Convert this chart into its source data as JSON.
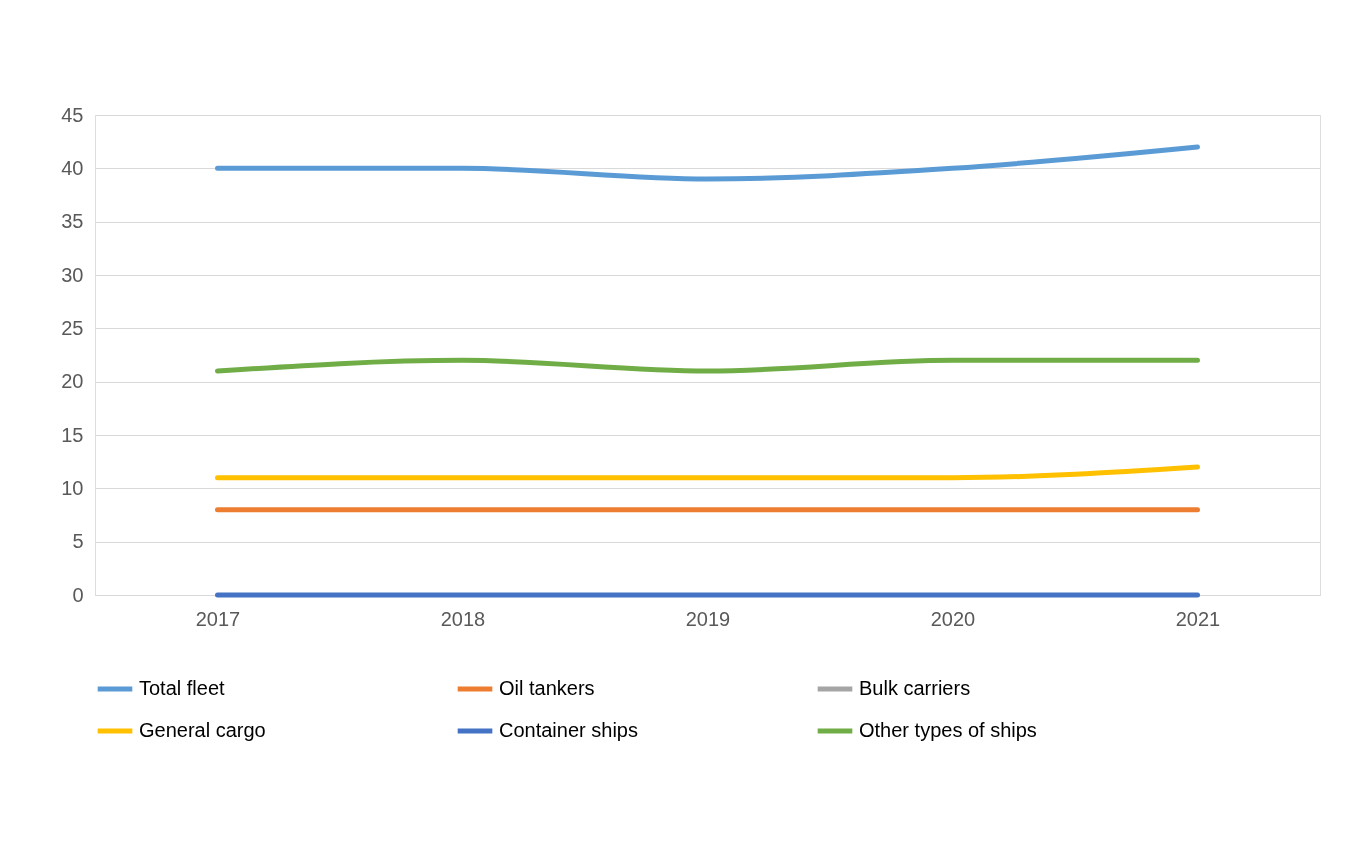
{
  "chart_data": {
    "type": "line",
    "categories": [
      "2017",
      "2018",
      "2019",
      "2020",
      "2021"
    ],
    "series": [
      {
        "name": "Total fleet",
        "color": "#5b9bd5",
        "values": [
          40,
          40,
          39,
          40,
          42
        ]
      },
      {
        "name": "Oil tankers",
        "color": "#ed7d31",
        "values": [
          8,
          8,
          8,
          8,
          8
        ]
      },
      {
        "name": "Bulk carriers",
        "color": "#a5a5a5",
        "values": [
          null,
          null,
          null,
          null,
          null
        ]
      },
      {
        "name": "General cargo",
        "color": "#ffc000",
        "values": [
          11,
          11,
          11,
          11,
          12
        ]
      },
      {
        "name": "Container ships",
        "color": "#4472c4",
        "values": [
          0,
          0,
          0,
          0,
          0
        ]
      },
      {
        "name": "Other types of ships",
        "color": "#70ad47",
        "values": [
          21,
          22,
          21,
          22,
          22
        ]
      }
    ],
    "ylim": [
      0,
      45
    ],
    "yticks": [
      0,
      5,
      10,
      15,
      20,
      25,
      30,
      35,
      40,
      45
    ],
    "grid": "y",
    "legend": "bottom",
    "marker": "none",
    "line_style": "solid"
  }
}
